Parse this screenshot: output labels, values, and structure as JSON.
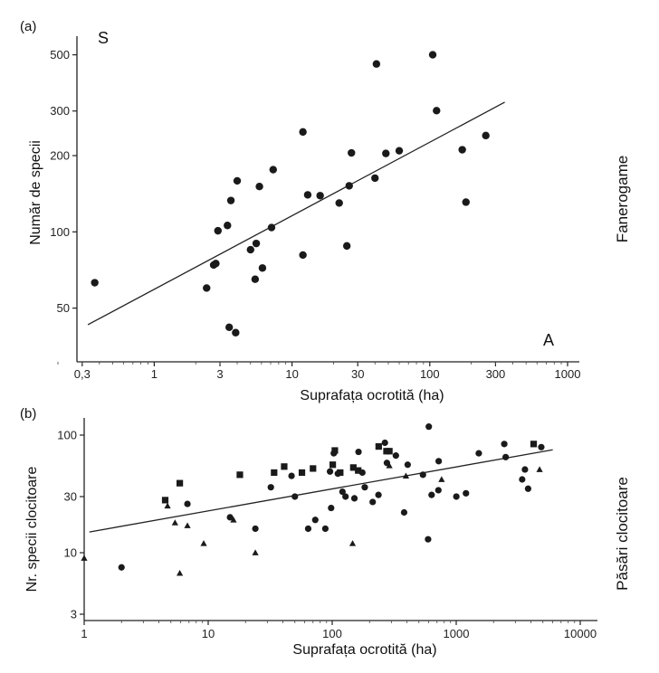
{
  "chart_data": [
    {
      "type": "scatter",
      "panel_label": "(a)",
      "corner_y": "S",
      "corner_x": "A",
      "side_label": "Fanerogame",
      "xlabel": "Suprafața ocrotită (ha)",
      "ylabel": "Număr de specii",
      "x_scale": "log",
      "y_scale": "log",
      "xlim": [
        0.2,
        1000
      ],
      "ylim": [
        35,
        550
      ],
      "x_ticks": [
        {
          "v": 0.3,
          "label": "0,3"
        },
        {
          "v": 1,
          "label": "1"
        },
        {
          "v": 3,
          "label": "3"
        },
        {
          "v": 10,
          "label": "10"
        },
        {
          "v": 30,
          "label": "30"
        },
        {
          "v": 100,
          "label": "100"
        },
        {
          "v": 300,
          "label": "300"
        },
        {
          "v": 1000,
          "label": "1000"
        }
      ],
      "y_ticks": [
        {
          "v": 50,
          "label": "50"
        },
        {
          "v": 100,
          "label": "100"
        },
        {
          "v": 200,
          "label": "200"
        },
        {
          "v": 300,
          "label": "300"
        },
        {
          "v": 500,
          "label": "500"
        }
      ],
      "fit_line": {
        "x": [
          0.33,
          350
        ],
        "y": [
          43,
          325
        ]
      },
      "series": [
        {
          "marker": "circle",
          "points": [
            [
              0.37,
              63
            ],
            [
              2.4,
              60
            ],
            [
              2.7,
              74
            ],
            [
              2.8,
              75
            ],
            [
              2.9,
              101
            ],
            [
              3.4,
              106
            ],
            [
              3.5,
              42
            ],
            [
              3.6,
              133
            ],
            [
              3.9,
              40
            ],
            [
              4.0,
              159
            ],
            [
              5.0,
              85
            ],
            [
              5.4,
              65
            ],
            [
              5.5,
              90
            ],
            [
              5.8,
              151
            ],
            [
              6.1,
              72
            ],
            [
              7.1,
              104
            ],
            [
              7.3,
              176
            ],
            [
              12,
              81
            ],
            [
              12,
              248
            ],
            [
              13,
              140
            ],
            [
              16,
              139
            ],
            [
              22,
              130
            ],
            [
              25,
              88
            ],
            [
              26,
              152
            ],
            [
              27,
              205
            ],
            [
              40,
              163
            ],
            [
              41,
              460
            ],
            [
              48,
              204
            ],
            [
              60,
              209
            ],
            [
              105,
              500
            ],
            [
              112,
              301
            ],
            [
              172,
              211
            ],
            [
              183,
              131
            ],
            [
              255,
              240
            ]
          ]
        }
      ]
    },
    {
      "type": "scatter",
      "panel_label": "(b)",
      "side_label": "Păsări clocitoare",
      "xlabel": "Suprafața ocrotită (ha)",
      "ylabel": "Nr. specii clocitoare",
      "x_scale": "log",
      "y_scale": "log",
      "xlim": [
        1,
        10000
      ],
      "ylim": [
        3,
        140
      ],
      "x_ticks": [
        {
          "v": 1,
          "label": "1"
        },
        {
          "v": 10,
          "label": "10"
        },
        {
          "v": 100,
          "label": "100"
        },
        {
          "v": 1000,
          "label": "1000"
        },
        {
          "v": 10000,
          "label": "10000"
        }
      ],
      "y_ticks": [
        {
          "v": 3,
          "label": "3"
        },
        {
          "v": 10,
          "label": "10"
        },
        {
          "v": 30,
          "label": "30"
        },
        {
          "v": 100,
          "label": "100"
        }
      ],
      "fit_line": {
        "x": [
          1.1,
          6000
        ],
        "y": [
          15,
          75
        ]
      },
      "series": [
        {
          "marker": "circle",
          "points": [
            [
              2,
              7.5
            ],
            [
              6.8,
              26
            ],
            [
              15,
              20
            ],
            [
              24,
              16
            ],
            [
              32,
              36
            ],
            [
              47,
              45
            ],
            [
              50,
              30
            ],
            [
              64,
              16
            ],
            [
              73,
              19
            ],
            [
              88,
              16
            ],
            [
              96,
              49
            ],
            [
              98,
              24
            ],
            [
              103,
              70
            ],
            [
              111,
              47
            ],
            [
              121,
              33
            ],
            [
              128,
              30
            ],
            [
              151,
              29
            ],
            [
              163,
              72
            ],
            [
              175,
              48
            ],
            [
              183,
              36
            ],
            [
              212,
              27
            ],
            [
              236,
              31
            ],
            [
              266,
              86
            ],
            [
              276,
              58
            ],
            [
              326,
              67
            ],
            [
              380,
              22
            ],
            [
              406,
              56
            ],
            [
              539,
              46
            ],
            [
              593,
              13
            ],
            [
              601,
              118
            ],
            [
              633,
              31
            ],
            [
              718,
              34
            ],
            [
              722,
              60
            ],
            [
              1002,
              30
            ],
            [
              1198,
              32
            ],
            [
              1520,
              70
            ],
            [
              2440,
              84
            ],
            [
              2504,
              65
            ],
            [
              3402,
              42
            ],
            [
              3582,
              51
            ],
            [
              3798,
              35
            ],
            [
              4850,
              79
            ]
          ]
        },
        {
          "marker": "square",
          "points": [
            [
              4.5,
              28
            ],
            [
              5.9,
              39
            ],
            [
              18,
              46
            ],
            [
              34,
              48
            ],
            [
              41,
              54
            ],
            [
              57,
              48
            ],
            [
              70,
              52
            ],
            [
              101,
              56
            ],
            [
              105,
              74
            ],
            [
              116,
              48
            ],
            [
              148,
              53
            ],
            [
              162,
              50
            ],
            [
              237,
              80
            ],
            [
              274,
              73
            ],
            [
              289,
              73
            ],
            [
              4210,
              84
            ]
          ]
        },
        {
          "marker": "triangle",
          "points": [
            [
              1,
              9
            ],
            [
              4.7,
              25
            ],
            [
              5.4,
              18
            ],
            [
              5.9,
              6.7
            ],
            [
              6.8,
              17
            ],
            [
              9.2,
              12
            ],
            [
              16,
              19
            ],
            [
              24,
              10
            ],
            [
              146,
              12
            ],
            [
              289,
              55
            ],
            [
              393,
              45
            ],
            [
              762,
              42
            ],
            [
              4700,
              51
            ]
          ]
        }
      ]
    }
  ]
}
